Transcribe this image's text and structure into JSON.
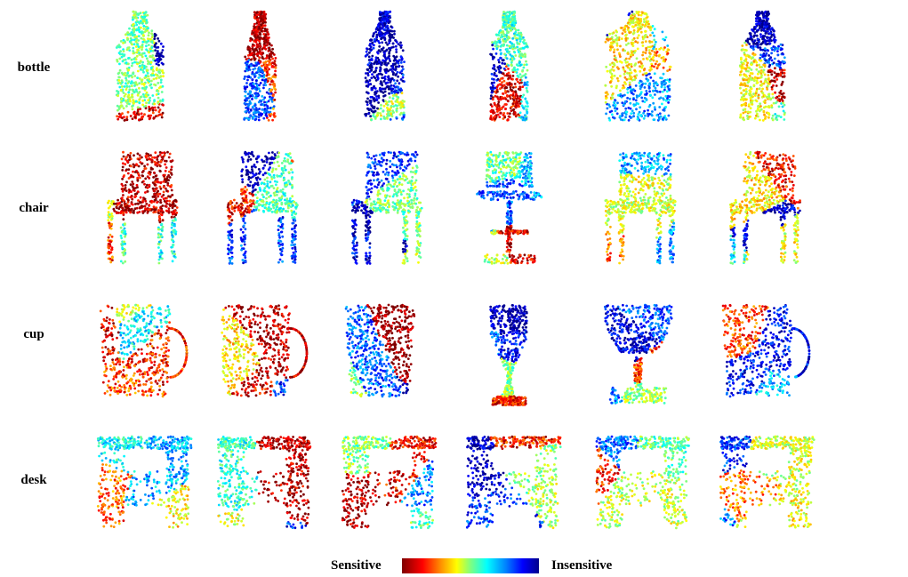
{
  "rows": [
    {
      "label": "bottle",
      "shape": "bottle",
      "variants": [
        "bottle-a",
        "bottle-b",
        "bottle-c",
        "bottle-d",
        "bottle-e",
        "bottle-f"
      ]
    },
    {
      "label": "chair",
      "shape": "chair",
      "variants": [
        "chair-a",
        "chair-b",
        "chair-c",
        "chair-d",
        "chair-e",
        "chair-f"
      ]
    },
    {
      "label": "cup",
      "shape": "cup",
      "variants": [
        "cup-a",
        "cup-b",
        "cup-c",
        "cup-d",
        "cup-e",
        "cup-f"
      ]
    },
    {
      "label": "desk",
      "shape": "desk",
      "variants": [
        "desk-a",
        "desk-b",
        "desk-c",
        "desk-d",
        "desk-e",
        "desk-f"
      ]
    }
  ],
  "legend": {
    "left_label": "Sensitive",
    "right_label": "Insensitive",
    "colormap": [
      "#7f0000",
      "#ff0000",
      "#ff8c00",
      "#ffff00",
      "#7fff7f",
      "#00ffff",
      "#0080ff",
      "#0000ff",
      "#00008b"
    ]
  }
}
